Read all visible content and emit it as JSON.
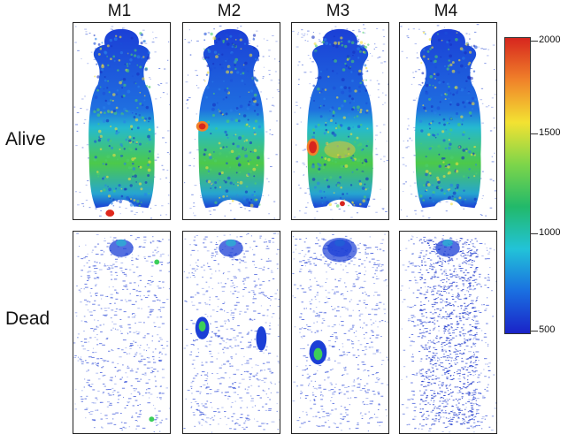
{
  "columns": [
    "M1",
    "M2",
    "M3",
    "M4"
  ],
  "rows": [
    "Alive",
    "Dead"
  ],
  "colorbar": {
    "max_label": "2000",
    "label_1500": "1500",
    "label_1000": "1000",
    "min_label": "500",
    "colors": [
      "#d7261e",
      "#f0822a",
      "#f3e232",
      "#7dd54a",
      "#22b96a",
      "#22c3d8",
      "#1a6fe0",
      "#1a23c8"
    ]
  }
}
